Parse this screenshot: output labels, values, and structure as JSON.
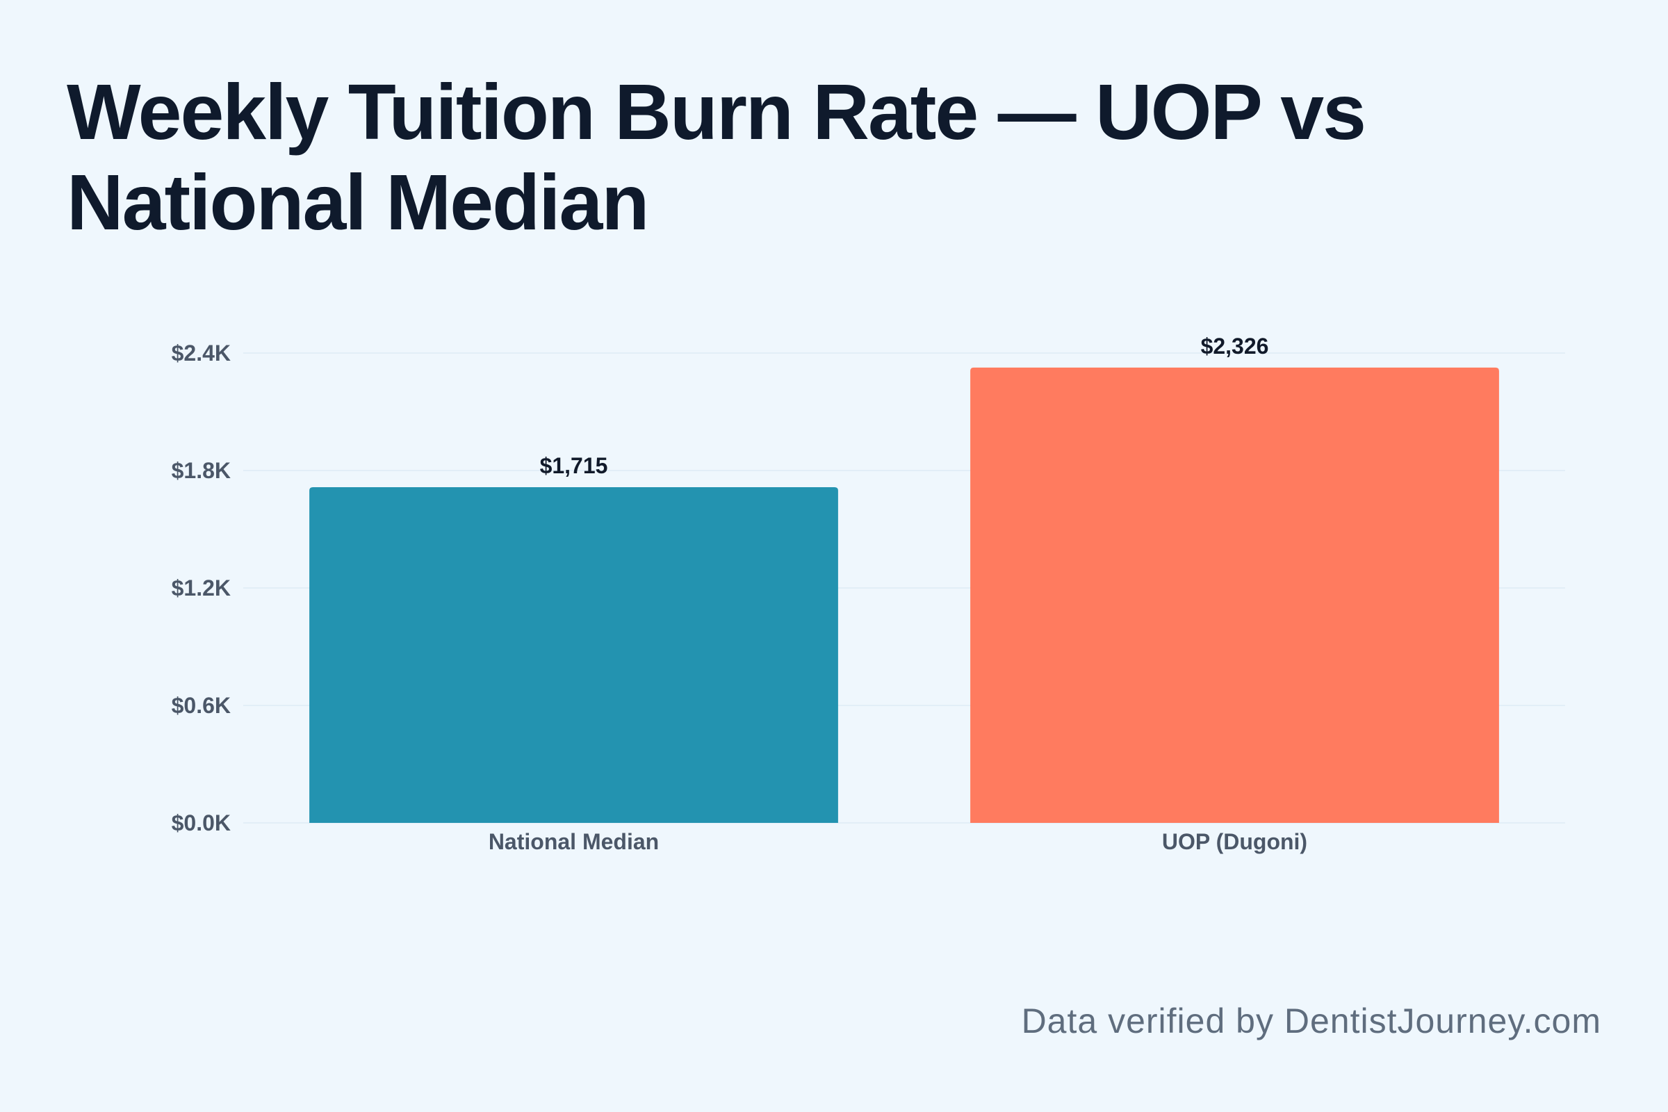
{
  "title": "Weekly Tuition Burn Rate — UOP vs National Median",
  "footer": "Data verified by DentistJourney.com",
  "chart_data": {
    "type": "bar",
    "categories": [
      "National Median",
      "UOP (Dugoni)"
    ],
    "values": [
      1715,
      2326
    ],
    "value_labels": [
      "$1,715",
      "$2,326"
    ],
    "colors": [
      "#2393b0",
      "#ff7b5f"
    ],
    "ylim": [
      0,
      2400
    ],
    "yticks": [
      0,
      600,
      1200,
      1800,
      2400
    ],
    "ytick_labels": [
      "$0.0K",
      "$0.6K",
      "$1.2K",
      "$1.8K",
      "$2.4K"
    ],
    "grid": true
  }
}
